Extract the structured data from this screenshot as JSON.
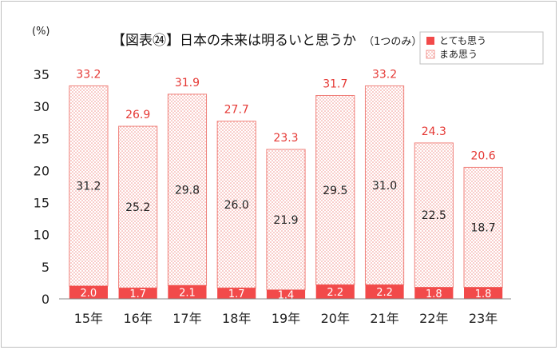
{
  "chart_data": {
    "type": "bar",
    "stacked": true,
    "title": "【図表㉔】日本の未来は明るいと思うか",
    "subtitle": "（1つのみ）",
    "ylabel": "(%)",
    "xlabel": "",
    "ylim": [
      0,
      35
    ],
    "yticks": [
      0,
      5,
      10,
      15,
      20,
      25,
      30,
      35
    ],
    "grid": false,
    "legend": "top-right",
    "categories": [
      "15年",
      "16年",
      "17年",
      "18年",
      "19年",
      "20年",
      "21年",
      "22年",
      "23年"
    ],
    "series": [
      {
        "name": "とても思う",
        "values": [
          2.0,
          1.7,
          2.1,
          1.7,
          1.4,
          2.2,
          2.2,
          1.8,
          1.8
        ],
        "color": "#f24a4a"
      },
      {
        "name": "まあ思う",
        "values": [
          31.2,
          25.2,
          29.8,
          26.0,
          21.9,
          29.5,
          31.0,
          22.5,
          18.7
        ],
        "color": "#f0807a"
      }
    ],
    "totals": [
      33.2,
      26.9,
      31.9,
      27.7,
      23.3,
      31.7,
      33.2,
      24.3,
      20.6
    ]
  }
}
